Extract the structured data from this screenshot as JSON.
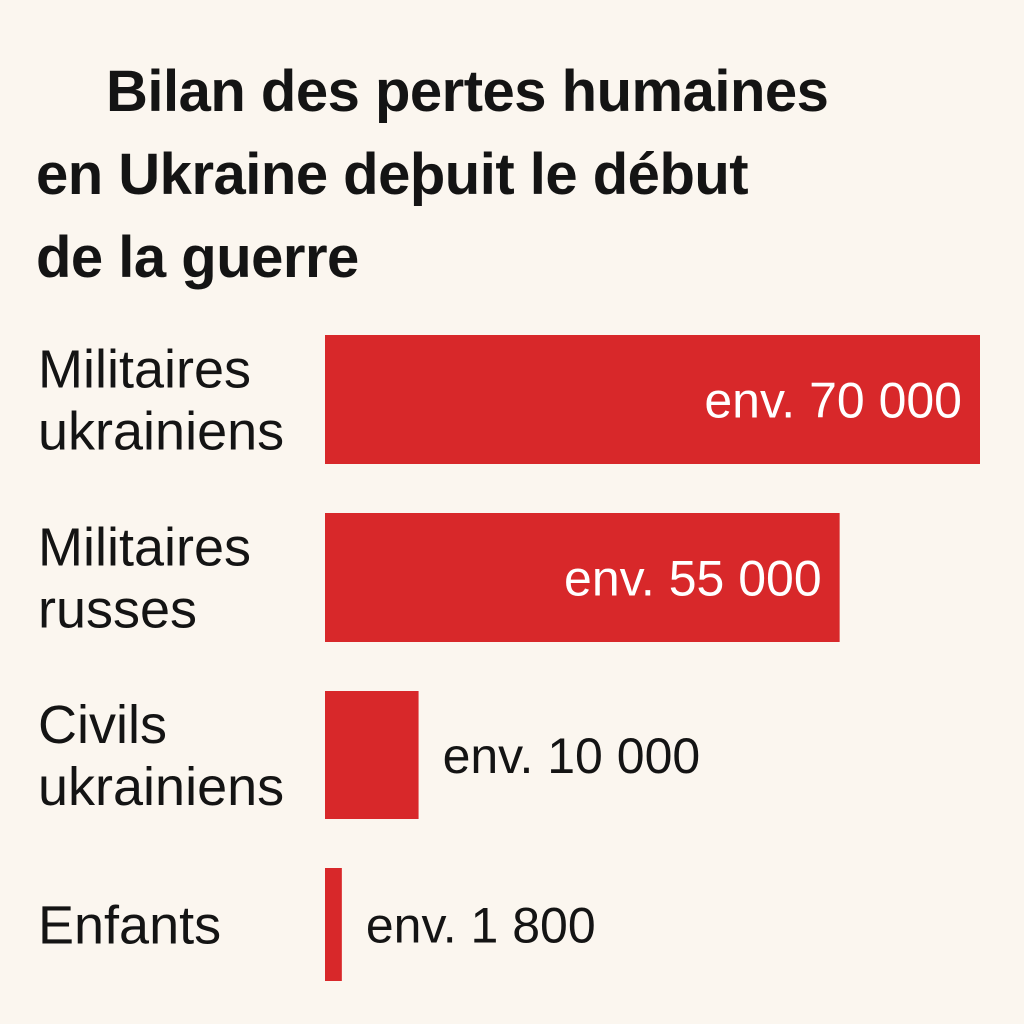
{
  "chart_data": {
    "type": "bar",
    "orientation": "horizontal",
    "title_lines": [
      "Bilan des pertes humaines",
      "en Ukraine deþuit le début",
      "de la guerre"
    ],
    "categories": [
      [
        "Militaires",
        "ukrainiens"
      ],
      [
        "Militaires",
        "russes"
      ],
      [
        "Civils",
        "ukrainiens"
      ],
      [
        "Enfants"
      ]
    ],
    "values": [
      70000,
      55000,
      10000,
      1800
    ],
    "value_labels": [
      "env. 70 000",
      "env. 55 000",
      "env. 10 000",
      "env. 1 800"
    ],
    "xlim": [
      0,
      70000
    ],
    "grid": false,
    "legend": "none",
    "colors": {
      "bar": "#d8282a",
      "background": "#fbf6ef",
      "text": "#141414",
      "label_on_bar": "#ffffff"
    }
  }
}
